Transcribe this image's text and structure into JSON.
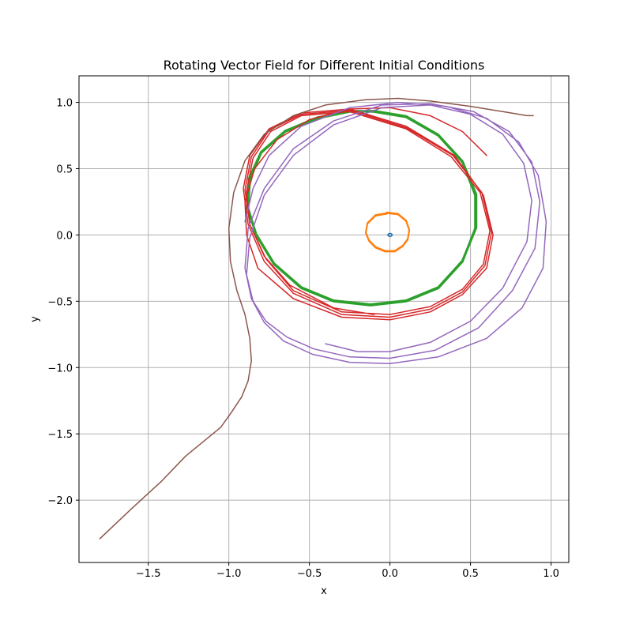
{
  "chart_data": {
    "type": "line",
    "title": "Rotating Vector Field for Different Initial Conditions",
    "xlabel": "x",
    "ylabel": "y",
    "xlim": [
      -1.93,
      1.11
    ],
    "ylim": [
      -2.47,
      1.2
    ],
    "xticks": [
      -1.5,
      -1.0,
      -0.5,
      0.0,
      0.5,
      1.0
    ],
    "xtick_labels": [
      "−1.5",
      "−1.0",
      "−0.5",
      "0.0",
      "0.5",
      "1.0"
    ],
    "yticks": [
      -2.0,
      -1.5,
      -1.0,
      -0.5,
      0.0,
      0.5,
      1.0
    ],
    "ytick_labels": [
      "−2.0",
      "−1.5",
      "−1.0",
      "−0.5",
      "0.0",
      "0.5",
      "1.0"
    ],
    "grid": true,
    "series": [
      {
        "color": "#1f77b4",
        "line_width": 1.5,
        "x": [
          0.0,
          0.008,
          0.015,
          0.008,
          0.0,
          -0.008,
          -0.015,
          -0.008,
          0.0
        ],
        "y": [
          0.012,
          0.009,
          0.0,
          -0.009,
          -0.012,
          -0.009,
          0.0,
          0.009,
          0.012
        ]
      },
      {
        "color": "#ff7f0e",
        "line_width": 2,
        "x": [
          -0.02,
          0.05,
          0.1,
          0.12,
          0.11,
          0.08,
          0.03,
          -0.03,
          -0.09,
          -0.13,
          -0.15,
          -0.14,
          -0.09,
          -0.02,
          0.05,
          0.1,
          0.12,
          0.11,
          0.08,
          0.03,
          -0.03,
          -0.09,
          -0.13,
          -0.15,
          -0.14,
          -0.09,
          -0.02
        ],
        "y": [
          0.17,
          0.16,
          0.11,
          0.04,
          -0.03,
          -0.08,
          -0.12,
          -0.12,
          -0.09,
          -0.04,
          0.02,
          0.09,
          0.15,
          0.165,
          0.155,
          0.105,
          0.035,
          -0.035,
          -0.085,
          -0.125,
          -0.125,
          -0.095,
          -0.045,
          0.015,
          0.085,
          0.145,
          0.16
        ]
      },
      {
        "color": "#2ca02c",
        "line_width": 3,
        "x": [
          -0.1,
          0.1,
          0.3,
          0.45,
          0.53,
          0.53,
          0.45,
          0.3,
          0.1,
          -0.12,
          -0.35,
          -0.55,
          -0.72,
          -0.83,
          -0.88,
          -0.87,
          -0.8,
          -0.65,
          -0.45,
          -0.25,
          -0.1,
          0.1,
          0.3,
          0.45,
          0.535,
          0.535,
          0.45,
          0.3,
          0.1,
          -0.12,
          -0.35,
          -0.55,
          -0.72,
          -0.83,
          -0.885,
          -0.875,
          -0.8,
          -0.65,
          -0.45,
          -0.25,
          -0.1
        ],
        "y": [
          0.93,
          0.89,
          0.75,
          0.55,
          0.3,
          0.05,
          -0.2,
          -0.4,
          -0.5,
          -0.53,
          -0.5,
          -0.4,
          -0.22,
          0.0,
          0.2,
          0.42,
          0.62,
          0.78,
          0.88,
          0.93,
          0.935,
          0.895,
          0.755,
          0.555,
          0.305,
          0.055,
          -0.195,
          -0.395,
          -0.495,
          -0.525,
          -0.495,
          -0.395,
          -0.215,
          0.005,
          0.205,
          0.425,
          0.625,
          0.785,
          0.885,
          0.935,
          0.93
        ]
      },
      {
        "color": "#d62728",
        "line_width": 1.5,
        "x": [
          0.6,
          0.45,
          0.25,
          0.0,
          -0.25,
          -0.5,
          -0.7,
          -0.84,
          -0.9,
          -0.89,
          -0.82,
          -0.6,
          -0.3,
          0.0,
          0.25,
          0.45,
          0.6,
          0.64,
          0.58,
          0.4,
          0.1,
          -0.25,
          -0.55,
          -0.75,
          -0.87,
          -0.91,
          -0.88,
          -0.78,
          -0.6,
          -0.3,
          0.0,
          0.25,
          0.45,
          0.59,
          0.63,
          0.57,
          0.39,
          0.1,
          -0.25,
          -0.55,
          -0.75,
          -0.86,
          -0.9,
          -0.87,
          -0.77,
          -0.6,
          -0.3,
          0.0,
          0.25,
          0.45,
          0.58,
          0.62,
          0.56,
          0.38,
          0.1,
          -0.25,
          -0.55,
          -0.74,
          -0.85,
          -0.89,
          -0.87,
          -0.78,
          -0.62,
          -0.35,
          -0.1
        ],
        "y": [
          0.6,
          0.78,
          0.9,
          0.96,
          0.95,
          0.87,
          0.72,
          0.5,
          0.25,
          0.0,
          -0.25,
          -0.48,
          -0.62,
          -0.64,
          -0.58,
          -0.45,
          -0.25,
          0.0,
          0.3,
          0.6,
          0.82,
          0.95,
          0.92,
          0.8,
          0.6,
          0.35,
          0.08,
          -0.2,
          -0.44,
          -0.6,
          -0.62,
          -0.56,
          -0.43,
          -0.23,
          0.02,
          0.32,
          0.6,
          0.81,
          0.94,
          0.91,
          0.79,
          0.59,
          0.34,
          0.08,
          -0.18,
          -0.42,
          -0.58,
          -0.6,
          -0.54,
          -0.41,
          -0.22,
          0.03,
          0.32,
          0.59,
          0.8,
          0.93,
          0.9,
          0.78,
          0.58,
          0.33,
          0.08,
          -0.16,
          -0.38,
          -0.55,
          -0.6
        ]
      },
      {
        "color": "#9467bd",
        "line_width": 1.5,
        "x": [
          -0.9,
          -0.85,
          -0.75,
          -0.55,
          -0.25,
          0.05,
          0.35,
          0.6,
          0.8,
          0.92,
          0.97,
          0.95,
          0.82,
          0.6,
          0.3,
          0.0,
          -0.25,
          -0.48,
          -0.66,
          -0.78,
          -0.86,
          -0.9,
          -0.88,
          -0.78,
          -0.6,
          -0.35,
          -0.05,
          0.25,
          0.52,
          0.74,
          0.88,
          0.93,
          0.9,
          0.76,
          0.55,
          0.28,
          0.0,
          -0.25,
          -0.47,
          -0.64,
          -0.77,
          -0.85,
          -0.89,
          -0.87,
          -0.78,
          -0.6,
          -0.35,
          -0.05,
          0.25,
          0.5,
          0.7,
          0.83,
          0.88,
          0.85,
          0.7,
          0.5,
          0.25,
          0.0,
          -0.2,
          -0.4
        ],
        "y": [
          0.1,
          0.35,
          0.6,
          0.82,
          0.96,
          1.0,
          0.97,
          0.88,
          0.7,
          0.45,
          0.1,
          -0.25,
          -0.55,
          -0.78,
          -0.92,
          -0.97,
          -0.96,
          -0.9,
          -0.8,
          -0.66,
          -0.48,
          -0.25,
          0.05,
          0.35,
          0.65,
          0.86,
          0.98,
          0.99,
          0.93,
          0.78,
          0.55,
          0.25,
          -0.1,
          -0.42,
          -0.7,
          -0.87,
          -0.93,
          -0.92,
          -0.86,
          -0.77,
          -0.65,
          -0.5,
          -0.3,
          -0.02,
          0.3,
          0.6,
          0.83,
          0.96,
          0.98,
          0.91,
          0.76,
          0.54,
          0.26,
          -0.05,
          -0.4,
          -0.65,
          -0.81,
          -0.88,
          -0.88,
          -0.82
        ]
      },
      {
        "color": "#8c564b",
        "line_width": 1.5,
        "x": [
          0.89,
          0.85,
          0.7,
          0.5,
          0.25,
          0.05,
          -0.15,
          -0.4,
          -0.6,
          -0.78,
          -0.9,
          -0.97,
          -1.0,
          -0.99,
          -0.95,
          -0.9,
          -0.87,
          -0.86,
          -0.88,
          -0.92,
          -0.98,
          -1.05,
          -1.15,
          -1.27,
          -1.42,
          -1.6,
          -1.8
        ],
        "y": [
          0.9,
          0.9,
          0.93,
          0.97,
          1.01,
          1.03,
          1.02,
          0.98,
          0.9,
          0.76,
          0.56,
          0.32,
          0.05,
          -0.2,
          -0.42,
          -0.6,
          -0.78,
          -0.95,
          -1.1,
          -1.22,
          -1.33,
          -1.45,
          -1.55,
          -1.67,
          -1.86,
          -2.06,
          -2.29
        ]
      }
    ]
  }
}
